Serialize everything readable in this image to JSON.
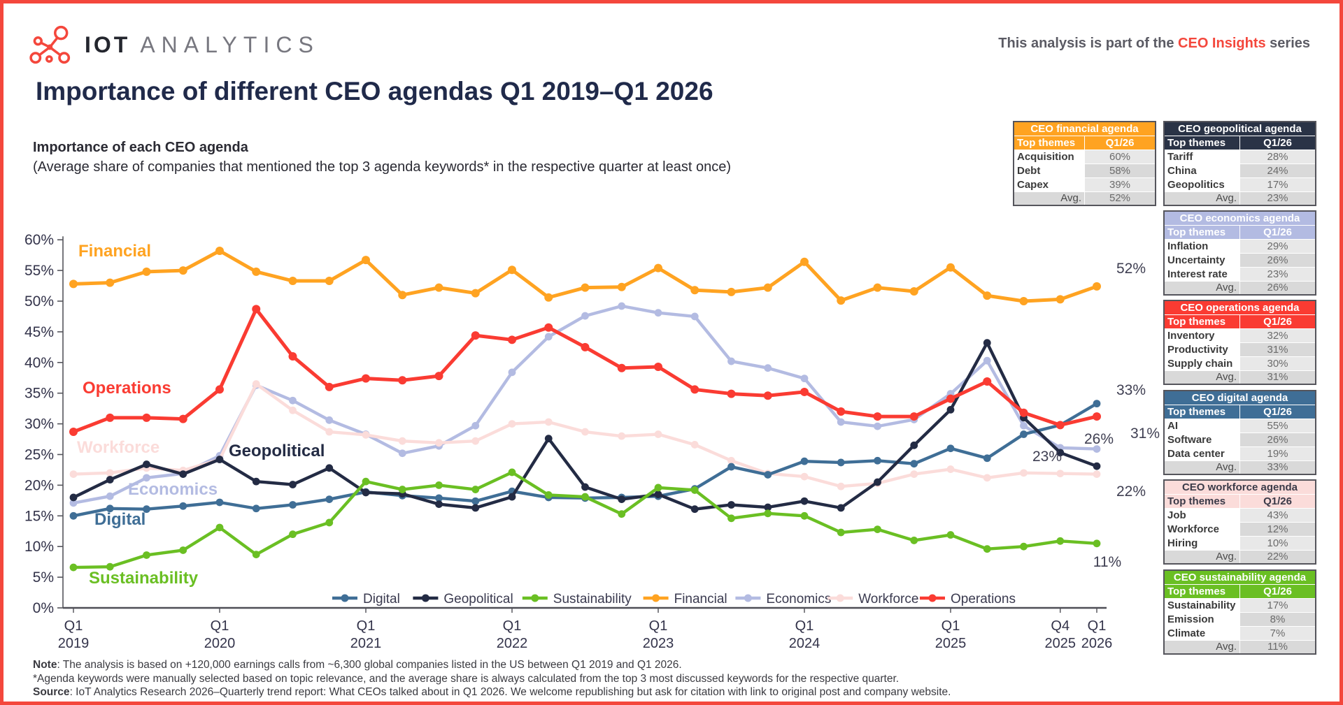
{
  "header": {
    "brand_bold": "IOT",
    "brand_light": "ANALYTICS",
    "series_note_prefix": "This analysis is part of the ",
    "series_note_highlight": "CEO Insights",
    "series_note_suffix": " series",
    "title": "Importance of different CEO agendas Q1 2019–Q1 2026"
  },
  "chart_subtitle": {
    "line1": "Importance of each CEO agenda",
    "line2": "(Average share of companies that mentioned the top 3 agenda keywords* in the respective quarter at least once)"
  },
  "chart_data": {
    "type": "line",
    "title": "Importance of each CEO agenda",
    "xlabel": "",
    "ylabel": "",
    "ylim": [
      0,
      60
    ],
    "ytick_step": 5,
    "ytick_format": "percent",
    "grid": false,
    "legend_position": "bottom-inside",
    "categories": [
      "Q1 2019",
      "Q2 2019",
      "Q3 2019",
      "Q4 2019",
      "Q1 2020",
      "Q2 2020",
      "Q3 2020",
      "Q4 2020",
      "Q1 2021",
      "Q2 2021",
      "Q3 2021",
      "Q4 2021",
      "Q1 2022",
      "Q2 2022",
      "Q3 2022",
      "Q4 2022",
      "Q1 2023",
      "Q2 2023",
      "Q3 2023",
      "Q4 2023",
      "Q1 2024",
      "Q2 2024",
      "Q3 2024",
      "Q4 2024",
      "Q1 2025",
      "Q2 2025",
      "Q3 2025",
      "Q4 2025",
      "Q1 2026"
    ],
    "x_axis_labels": [
      {
        "index": 0,
        "line1": "Q1",
        "line2": "2019"
      },
      {
        "index": 4,
        "line1": "Q1",
        "line2": "2020"
      },
      {
        "index": 8,
        "line1": "Q1",
        "line2": "2021"
      },
      {
        "index": 12,
        "line1": "Q1",
        "line2": "2022"
      },
      {
        "index": 16,
        "line1": "Q1",
        "line2": "2023"
      },
      {
        "index": 20,
        "line1": "Q1",
        "line2": "2024"
      },
      {
        "index": 24,
        "line1": "Q1",
        "line2": "2025"
      },
      {
        "index": 27,
        "line1": "Q4",
        "line2": "2025"
      },
      {
        "index": 28,
        "line1": "Q1",
        "line2": "2026"
      }
    ],
    "series": [
      {
        "name": "Digital",
        "color": "#3F6E96",
        "values": [
          15.0,
          16.2,
          16.1,
          16.6,
          17.2,
          16.2,
          16.8,
          17.7,
          18.9,
          18.3,
          17.9,
          17.4,
          19.0,
          18.0,
          17.9,
          18.0,
          18.2,
          19.4,
          23.0,
          21.7,
          23.9,
          23.7,
          24.0,
          23.5,
          26.0,
          24.4,
          28.3,
          29.8,
          33.3
        ]
      },
      {
        "name": "Geopolitical",
        "color": "#232B44",
        "values": [
          18.0,
          20.9,
          23.4,
          21.8,
          24.2,
          20.6,
          20.1,
          22.8,
          18.8,
          18.6,
          16.9,
          16.3,
          18.1,
          27.6,
          19.7,
          17.7,
          18.5,
          16.1,
          16.8,
          16.4,
          17.4,
          16.3,
          20.5,
          26.5,
          32.3,
          43.2,
          31.0,
          25.3,
          23.1
        ]
      },
      {
        "name": "Sustainability",
        "color": "#6ABF23",
        "values": [
          6.6,
          6.7,
          8.6,
          9.4,
          13.1,
          8.7,
          12.0,
          13.9,
          20.6,
          19.3,
          20.0,
          19.3,
          22.1,
          18.4,
          18.1,
          15.3,
          19.6,
          19.2,
          14.6,
          15.4,
          15.0,
          12.3,
          12.8,
          11.0,
          11.9,
          9.6,
          10.0,
          10.9,
          10.5
        ]
      },
      {
        "name": "Financial",
        "color": "#FFA321",
        "values": [
          52.8,
          53.0,
          54.8,
          55.0,
          58.2,
          54.8,
          53.3,
          53.3,
          56.7,
          51.0,
          52.2,
          51.3,
          55.1,
          50.6,
          52.2,
          52.3,
          55.4,
          51.8,
          51.5,
          52.2,
          56.4,
          50.1,
          52.2,
          51.6,
          55.5,
          50.9,
          50.0,
          50.3,
          52.4
        ]
      },
      {
        "name": "Economics",
        "color": "#B3BBE2",
        "values": [
          17.1,
          18.2,
          21.2,
          21.9,
          24.8,
          36.3,
          33.8,
          30.6,
          28.3,
          25.2,
          26.4,
          29.7,
          38.4,
          44.2,
          47.6,
          49.2,
          48.1,
          47.5,
          40.2,
          39.1,
          37.4,
          30.3,
          29.6,
          30.7,
          34.9,
          40.3,
          29.7,
          26.1,
          25.9
        ]
      },
      {
        "name": "Workforce",
        "color": "#FBDCDA",
        "values": [
          21.8,
          22.0,
          22.8,
          22.4,
          24.2,
          36.5,
          32.2,
          28.7,
          28.2,
          27.2,
          26.9,
          27.2,
          30.0,
          30.3,
          28.7,
          28.0,
          28.3,
          26.6,
          24.0,
          21.9,
          21.4,
          19.8,
          20.3,
          21.8,
          22.6,
          21.2,
          22.0,
          21.9,
          21.8
        ]
      },
      {
        "name": "Operations",
        "color": "#FA3B32",
        "values": [
          28.7,
          31.0,
          31.0,
          30.8,
          35.6,
          48.7,
          41.0,
          36.0,
          37.4,
          37.1,
          37.8,
          44.4,
          43.7,
          45.7,
          42.5,
          39.1,
          39.3,
          35.6,
          34.9,
          34.6,
          35.2,
          32.0,
          31.2,
          31.2,
          34.1,
          36.9,
          31.8,
          29.8,
          31.2
        ]
      }
    ],
    "end_labels": [
      {
        "series": "Financial",
        "text": "52%"
      },
      {
        "series": "Digital",
        "text": "33%"
      },
      {
        "series": "Operations",
        "text": "31%"
      },
      {
        "series": "Economics",
        "text": "26%"
      },
      {
        "series": "Geopolitical",
        "text": "23%"
      },
      {
        "series": "Workforce",
        "text": "22%"
      },
      {
        "series": "Sustainability",
        "text": "11%"
      }
    ],
    "inline_series_labels": [
      "Financial",
      "Operations",
      "Workforce",
      "Geopolitical",
      "Economics",
      "Digital",
      "Sustainability"
    ],
    "legend_entries": [
      "Digital",
      "Geopolitical",
      "Sustainability",
      "Financial",
      "Economics",
      "Workforce",
      "Operations"
    ]
  },
  "agenda_tables": [
    {
      "id": "financial",
      "title": "CEO financial agenda",
      "header_bg": "#FFA321",
      "header_fg": "#FFFFFF",
      "col1": "Top themes",
      "col2": "Q1/26",
      "rows": [
        [
          "Acquisition",
          "60%"
        ],
        [
          "Debt",
          "58%"
        ],
        [
          "Capex",
          "39%"
        ]
      ],
      "avg_label": "Avg.",
      "avg_value": "52%"
    },
    {
      "id": "geopolitical",
      "title": "CEO geopolitical agenda",
      "header_bg": "#2A3346",
      "header_fg": "#FFFFFF",
      "col1": "Top themes",
      "col2": "Q1/26",
      "rows": [
        [
          "Tariff",
          "28%"
        ],
        [
          "China",
          "24%"
        ],
        [
          "Geopolitics",
          "17%"
        ]
      ],
      "avg_label": "Avg.",
      "avg_value": "23%"
    },
    {
      "id": "economics",
      "title": "CEO economics agenda",
      "header_bg": "#B3BBE2",
      "header_fg": "#FFFFFF",
      "col1": "Top themes",
      "col2": "Q1/26",
      "rows": [
        [
          "Inflation",
          "29%"
        ],
        [
          "Uncertainty",
          "26%"
        ],
        [
          "Interest rate",
          "23%"
        ]
      ],
      "avg_label": "Avg.",
      "avg_value": "26%"
    },
    {
      "id": "operations",
      "title": "CEO operations agenda",
      "header_bg": "#FA3B32",
      "header_fg": "#FFFFFF",
      "col1": "Top themes",
      "col2": "Q1/26",
      "rows": [
        [
          "Inventory",
          "32%"
        ],
        [
          "Productivity",
          "31%"
        ],
        [
          "Supply chain",
          "30%"
        ]
      ],
      "avg_label": "Avg.",
      "avg_value": "31%"
    },
    {
      "id": "digital",
      "title": "CEO digital agenda",
      "header_bg": "#3F6E96",
      "header_fg": "#FFFFFF",
      "col1": "Top themes",
      "col2": "Q1/26",
      "rows": [
        [
          "AI",
          "55%"
        ],
        [
          "Software",
          "26%"
        ],
        [
          "Data center",
          "19%"
        ]
      ],
      "avg_label": "Avg.",
      "avg_value": "33%"
    },
    {
      "id": "workforce",
      "title": "CEO workforce agenda",
      "header_bg": "#FBDCDA",
      "header_fg": "#3A3A48",
      "col1": "Top themes",
      "col2": "Q1/26",
      "rows": [
        [
          "Job",
          "43%"
        ],
        [
          "Workforce",
          "12%"
        ],
        [
          "Hiring",
          "10%"
        ]
      ],
      "avg_label": "Avg.",
      "avg_value": "22%"
    },
    {
      "id": "sustainability",
      "title": "CEO sustainability agenda",
      "header_bg": "#6ABF23",
      "header_fg": "#FFFFFF",
      "col1": "Top themes",
      "col2": "Q1/26",
      "rows": [
        [
          "Sustainability",
          "17%"
        ],
        [
          "Emission",
          "8%"
        ],
        [
          "Climate",
          "7%"
        ]
      ],
      "avg_label": "Avg.",
      "avg_value": "11%"
    }
  ],
  "footer": {
    "note_label": "Note",
    "note_text": ": The analysis is based on +120,000 earnings calls from ~6,300 global companies listed in the US between Q1 2019 and Q1 2026.",
    "keywords_note": "*Agenda keywords were manually selected based on topic relevance, and the average share is always calculated from the top 3 most discussed keywords for the respective quarter.",
    "source_label": "Source",
    "source_text": ": IoT Analytics Research 2026–Quarterly trend report: What CEOs talked about in Q1 2026. We welcome republishing but ask for citation with link to original post and company website."
  }
}
